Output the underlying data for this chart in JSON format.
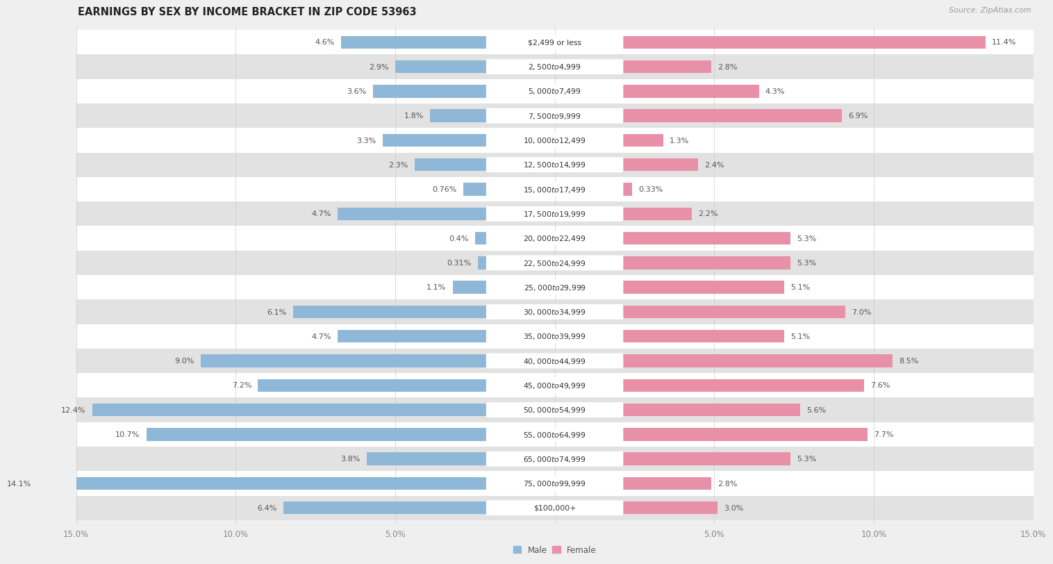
{
  "title": "EARNINGS BY SEX BY INCOME BRACKET IN ZIP CODE 53963",
  "source": "Source: ZipAtlas.com",
  "categories": [
    "$2,499 or less",
    "$2,500 to $4,999",
    "$5,000 to $7,499",
    "$7,500 to $9,999",
    "$10,000 to $12,499",
    "$12,500 to $14,999",
    "$15,000 to $17,499",
    "$17,500 to $19,999",
    "$20,000 to $22,499",
    "$22,500 to $24,999",
    "$25,000 to $29,999",
    "$30,000 to $34,999",
    "$35,000 to $39,999",
    "$40,000 to $44,999",
    "$45,000 to $49,999",
    "$50,000 to $54,999",
    "$55,000 to $64,999",
    "$65,000 to $74,999",
    "$75,000 to $99,999",
    "$100,000+"
  ],
  "male_values": [
    4.6,
    2.9,
    3.6,
    1.8,
    3.3,
    2.3,
    0.76,
    4.7,
    0.4,
    0.31,
    1.1,
    6.1,
    4.7,
    9.0,
    7.2,
    12.4,
    10.7,
    3.8,
    14.1,
    6.4
  ],
  "female_values": [
    11.4,
    2.8,
    4.3,
    6.9,
    1.3,
    2.4,
    0.33,
    2.2,
    5.3,
    5.3,
    5.1,
    7.0,
    5.1,
    8.5,
    7.6,
    5.6,
    7.7,
    5.3,
    2.8,
    3.0
  ],
  "male_color": "#8fb8d8",
  "female_color": "#e890a8",
  "male_label": "Male",
  "female_label": "Female",
  "axis_limit": 15.0,
  "background_color": "#efefef",
  "row_white": "#ffffff",
  "row_gray": "#e2e2e2",
  "title_fontsize": 10.5,
  "source_fontsize": 8,
  "label_fontsize": 8,
  "tick_fontsize": 8.5,
  "cat_label_fontsize": 7.8,
  "value_label_fontsize": 8
}
